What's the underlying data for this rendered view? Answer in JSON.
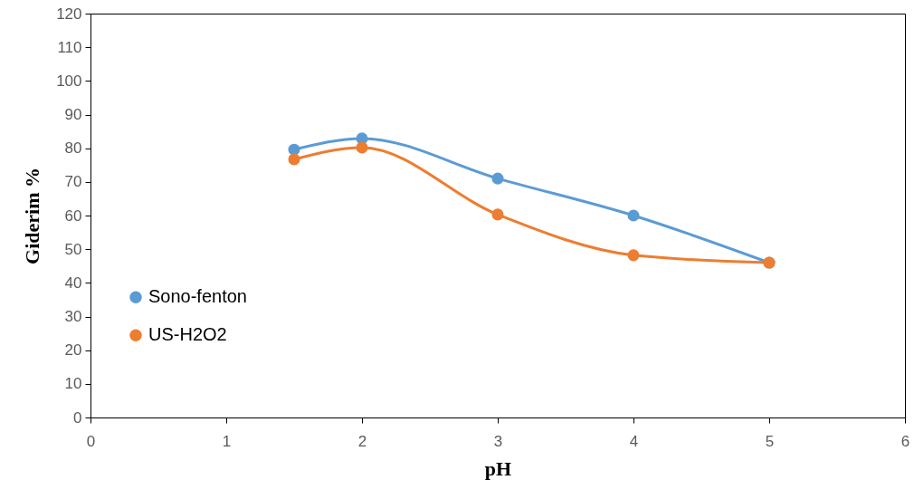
{
  "chart_data": {
    "type": "line",
    "xlabel": "pH",
    "ylabel": "Giderim %",
    "x": [
      1.5,
      2,
      3,
      4,
      5
    ],
    "series": [
      {
        "name": "Sono-fenton",
        "color": "#5b9bd5",
        "values": [
          79.6,
          82.9,
          71.0,
          60.0,
          46.0
        ]
      },
      {
        "name": "US-H2O2",
        "color": "#ed7d31",
        "values": [
          76.7,
          80.2,
          60.3,
          48.2,
          46.0
        ]
      }
    ],
    "xlim": [
      0,
      6
    ],
    "xticks": [
      0,
      1,
      2,
      3,
      4,
      5,
      6
    ],
    "ylim": [
      0,
      120
    ],
    "yticks": [
      0,
      10,
      20,
      30,
      40,
      50,
      60,
      70,
      80,
      90,
      100,
      110,
      120
    ],
    "grid": false,
    "legend": "left",
    "marker": "circle",
    "line_style": "solid"
  }
}
